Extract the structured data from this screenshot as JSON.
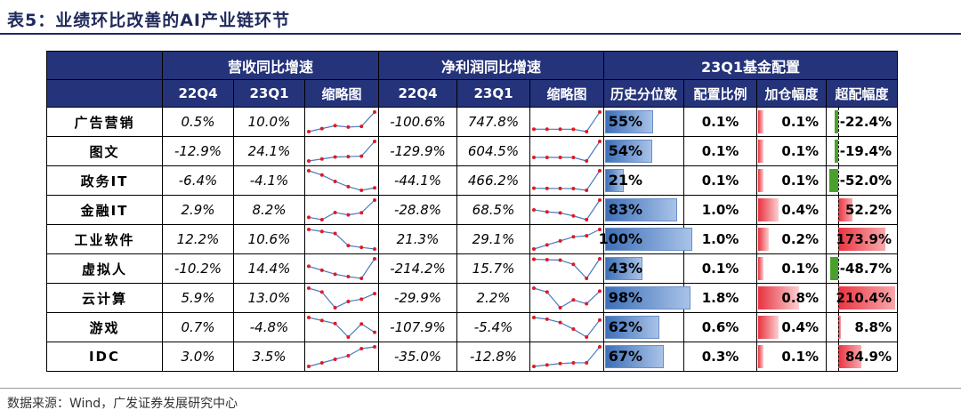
{
  "title": "表5：业绩环比改善的AI产业链环节",
  "source": "数据来源：Wind，广发证券发展研究中心",
  "headers": {
    "group_revenue": "营收同比增速",
    "group_profit": "净利润同比增速",
    "group_fund": "23Q1基金配置",
    "q4": "22Q4",
    "q1": "23Q1",
    "thumb": "缩略图",
    "pct": "历史分位数",
    "ratio": "配置比例",
    "add": "加仓幅度",
    "excess": "超配幅度"
  },
  "rows": [
    {
      "label": "广告营销",
      "rev_q4": "0.5%",
      "rev_q1": "10.0%",
      "np_q4": "-100.6%",
      "np_q1": "747.8%",
      "pct": "55%",
      "pct_value": 55,
      "ratio": "0.1%",
      "add": "0.1%",
      "add_value": 0.1,
      "excess": "-22.4%",
      "excess_value": -22.4,
      "rev_spark": [
        -3,
        -1,
        1,
        0,
        0.5,
        10
      ],
      "np_spark": [
        5,
        4,
        4,
        3,
        -100.6,
        747.8
      ]
    },
    {
      "label": "图文",
      "rev_q4": "-12.9%",
      "rev_q1": "24.1%",
      "np_q4": "-129.9%",
      "np_q1": "604.5%",
      "pct": "54%",
      "pct_value": 54,
      "ratio": "0.1%",
      "add": "0.1%",
      "add_value": 0.1,
      "excess": "-19.4%",
      "excess_value": -19.4,
      "rev_spark": [
        -25,
        -20,
        -15,
        -14,
        -12.9,
        24.1
      ],
      "np_spark": [
        5,
        4,
        4,
        3,
        -129.9,
        604.5
      ]
    },
    {
      "label": "政务IT",
      "rev_q4": "-6.4%",
      "rev_q1": "-4.1%",
      "np_q4": "-44.1%",
      "np_q1": "466.2%",
      "pct": "21%",
      "pct_value": 21,
      "ratio": "0.1%",
      "add": "0.1%",
      "add_value": 0.1,
      "excess": "-52.0%",
      "excess_value": -52.0,
      "rev_spark": [
        12,
        8,
        2,
        -3,
        -6.4,
        -4.1
      ],
      "np_spark": [
        10,
        6,
        4,
        3,
        -44.1,
        466.2
      ]
    },
    {
      "label": "金融IT",
      "rev_q4": "2.9%",
      "rev_q1": "8.2%",
      "np_q4": "-28.8%",
      "np_q1": "68.5%",
      "pct": "83%",
      "pct_value": 83,
      "ratio": "1.0%",
      "add": "0.4%",
      "add_value": 0.4,
      "excess": "52.2%",
      "excess_value": 52.2,
      "rev_spark": [
        1,
        0,
        3,
        2,
        2.9,
        8.2
      ],
      "np_spark": [
        20,
        10,
        5,
        -10,
        -28.8,
        68.5
      ]
    },
    {
      "label": "工业软件",
      "rev_q4": "12.2%",
      "rev_q1": "10.6%",
      "np_q4": "21.3%",
      "np_q1": "29.1%",
      "pct": "100%",
      "pct_value": 100,
      "ratio": "1.0%",
      "add": "0.2%",
      "add_value": 0.2,
      "excess": "173.9%",
      "excess_value": 173.9,
      "rev_spark": [
        30,
        28,
        26,
        14,
        12.2,
        10.6
      ],
      "np_spark": [
        5,
        10,
        15,
        20,
        21.3,
        29.1
      ]
    },
    {
      "label": "虚拟人",
      "rev_q4": "-10.2%",
      "rev_q1": "14.4%",
      "np_q4": "-214.2%",
      "np_q1": "15.7%",
      "pct": "43%",
      "pct_value": 43,
      "ratio": "0.1%",
      "add": "0.1%",
      "add_value": 0.1,
      "excess": "-48.7%",
      "excess_value": -48.7,
      "rev_spark": [
        5,
        0,
        -5,
        -8,
        -10.2,
        14.4
      ],
      "np_spark": [
        10,
        5,
        0,
        -50,
        -214.2,
        15.7
      ]
    },
    {
      "label": "云计算",
      "rev_q4": "5.9%",
      "rev_q1": "13.0%",
      "np_q4": "-29.9%",
      "np_q1": "2.2%",
      "pct": "98%",
      "pct_value": 98,
      "ratio": "1.8%",
      "add": "0.8%",
      "add_value": 0.8,
      "excess": "210.4%",
      "excess_value": 210.4,
      "rev_spark": [
        20,
        15,
        -5,
        3,
        5.9,
        13
      ],
      "np_spark": [
        10,
        0,
        -40,
        -20,
        -29.9,
        2.2
      ]
    },
    {
      "label": "游戏",
      "rev_q4": "0.7%",
      "rev_q1": "-4.8%",
      "np_q4": "-107.9%",
      "np_q1": "-5.4%",
      "pct": "62%",
      "pct_value": 62,
      "ratio": "0.6%",
      "add": "0.4%",
      "add_value": 0.4,
      "excess": "8.8%",
      "excess_value": 8.8,
      "rev_spark": [
        5,
        3,
        1,
        -8,
        0.7,
        -4.8
      ],
      "np_spark": [
        10,
        0,
        -20,
        -60,
        -107.9,
        -5.4
      ]
    },
    {
      "label": "IDC",
      "rev_q4": "3.0%",
      "rev_q1": "3.5%",
      "np_q4": "-35.0%",
      "np_q1": "-12.8%",
      "pct": "67%",
      "pct_value": 67,
      "ratio": "0.3%",
      "add": "0.1%",
      "add_value": 0.1,
      "excess": "84.9%",
      "excess_value": 84.9,
      "rev_spark": [
        -2,
        -1,
        0,
        1,
        3,
        3.5
      ],
      "np_spark": [
        -40,
        -38,
        -36,
        -35,
        -35,
        -12.8
      ]
    }
  ]
}
